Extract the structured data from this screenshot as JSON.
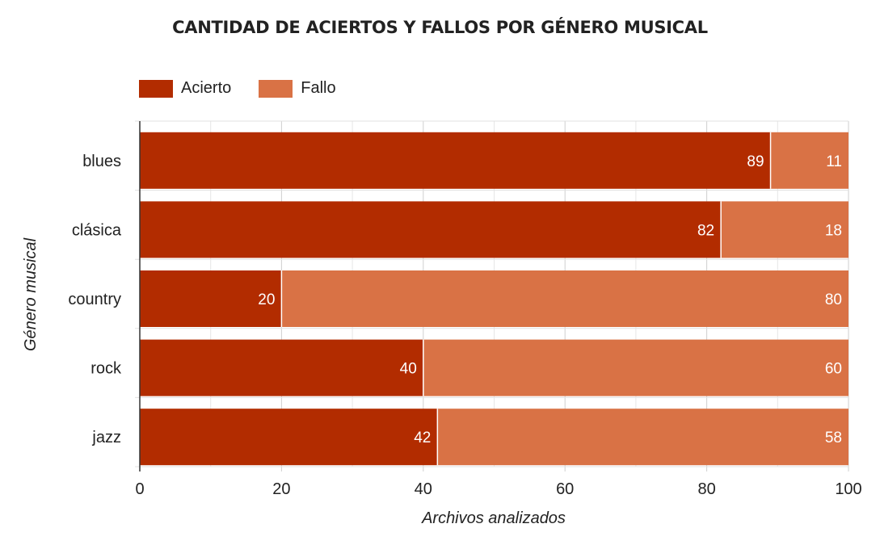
{
  "chart_data": {
    "type": "bar",
    "orientation": "horizontal",
    "stacked": true,
    "title": "CANTIDAD DE ACIERTOS Y FALLOS POR GÉNERO MUSICAL",
    "categories": [
      "blues",
      "clásica",
      "country",
      "rock",
      "jazz"
    ],
    "series": [
      {
        "name": "Acierto",
        "color": "#b22c00",
        "values": [
          89,
          82,
          20,
          40,
          42
        ]
      },
      {
        "name": "Fallo",
        "color": "#d97245",
        "values": [
          11,
          18,
          80,
          60,
          58
        ]
      }
    ],
    "xlabel": "Archivos analizados",
    "ylabel": "Género musical",
    "xlim": [
      0,
      100
    ],
    "xticks": [
      0,
      20,
      40,
      60,
      80,
      100
    ],
    "grid": true,
    "legend_position": "top-left"
  }
}
